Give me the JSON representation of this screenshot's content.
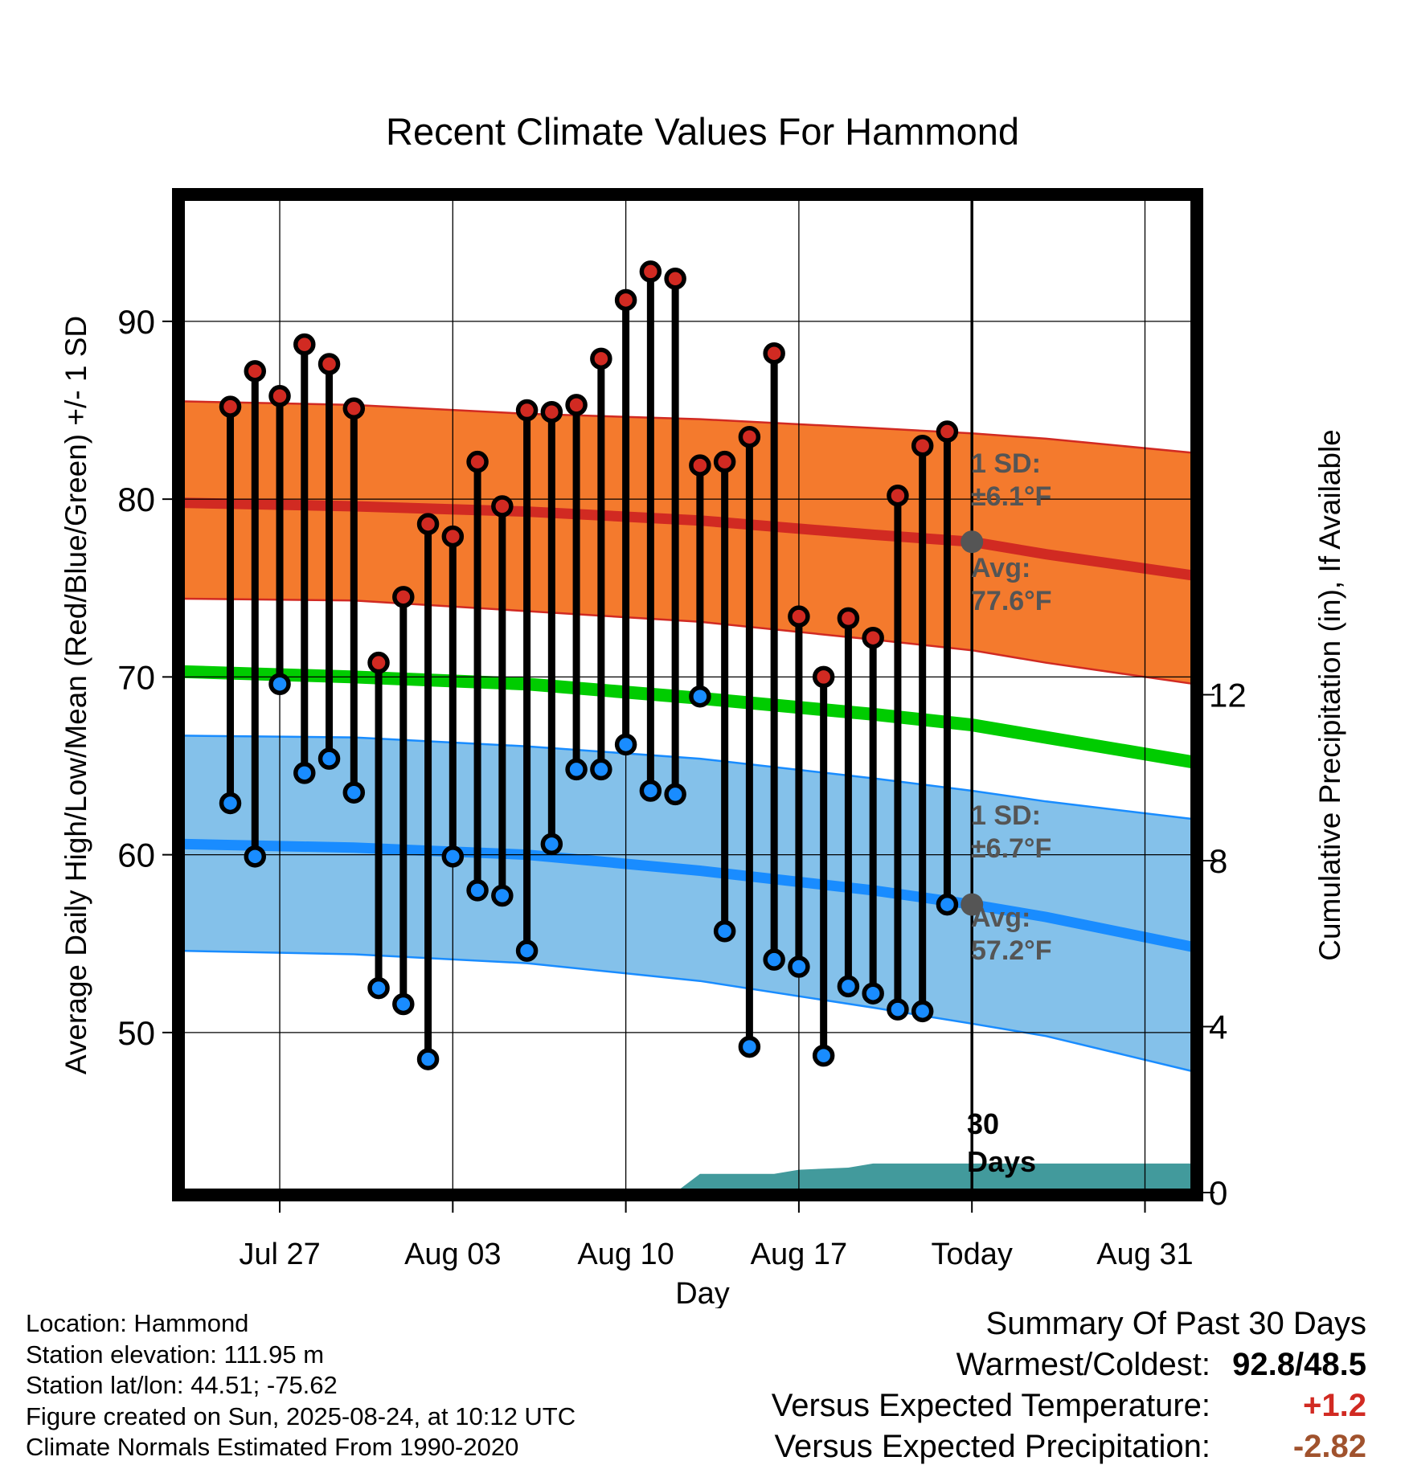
{
  "chart_data": {
    "type": "line",
    "title": "Recent Climate Values For Hammond",
    "xlabel": "Day",
    "ylabel": "Average Daily High/Low/Mean (Red/Blue/Green) +/- 1 SD",
    "y2label": "Cumulative Precipitation (in), If Available",
    "x_ticks": [
      {
        "label": "Jul 27",
        "date": "2025-07-27"
      },
      {
        "label": "Aug 03",
        "date": "2025-08-03"
      },
      {
        "label": "Aug 10",
        "date": "2025-08-10"
      },
      {
        "label": "Aug 17",
        "date": "2025-08-17"
      },
      {
        "label": "Today",
        "date": "2025-08-24"
      },
      {
        "label": "Aug 31",
        "date": "2025-08-31"
      }
    ],
    "xlim": [
      "2025-07-23",
      "2025-09-02"
    ],
    "ylim": [
      41,
      97
    ],
    "y_ticks": [
      50,
      60,
      70,
      80,
      90
    ],
    "y2lim": [
      0,
      24
    ],
    "y2_ticks": [
      0,
      4,
      8,
      12
    ],
    "today": "2025-08-24",
    "today_label": "30 Days",
    "grid": true,
    "normals": {
      "x": [
        "2025-07-23",
        "2025-07-30",
        "2025-08-06",
        "2025-08-13",
        "2025-08-20",
        "2025-08-24",
        "2025-08-27",
        "2025-09-02"
      ],
      "high_avg": [
        79.8,
        79.6,
        79.3,
        78.8,
        78.0,
        77.6,
        76.9,
        75.7
      ],
      "high_sd_upper": [
        85.5,
        85.3,
        84.8,
        84.5,
        84.0,
        83.7,
        83.4,
        82.6
      ],
      "high_sd_lower": [
        74.4,
        74.3,
        73.7,
        73.1,
        72.1,
        71.5,
        70.8,
        69.6
      ],
      "mean_avg": [
        70.3,
        70.0,
        69.6,
        68.8,
        67.9,
        67.3,
        66.6,
        65.2
      ],
      "low_avg": [
        60.6,
        60.4,
        60.0,
        59.1,
        58.0,
        57.2,
        56.5,
        54.8
      ],
      "low_sd_upper": [
        66.7,
        66.6,
        66.1,
        65.4,
        64.3,
        63.6,
        63.0,
        62.0
      ],
      "low_sd_lower": [
        54.6,
        54.4,
        53.9,
        52.9,
        51.4,
        50.5,
        49.8,
        47.8
      ]
    },
    "series": [
      {
        "name": "Daily High",
        "x": [
          "2025-07-25",
          "2025-07-26",
          "2025-07-27",
          "2025-07-28",
          "2025-07-29",
          "2025-07-30",
          "2025-07-31",
          "2025-08-01",
          "2025-08-02",
          "2025-08-03",
          "2025-08-04",
          "2025-08-05",
          "2025-08-06",
          "2025-08-07",
          "2025-08-08",
          "2025-08-09",
          "2025-08-10",
          "2025-08-11",
          "2025-08-12",
          "2025-08-13",
          "2025-08-14",
          "2025-08-15",
          "2025-08-16",
          "2025-08-17",
          "2025-08-18",
          "2025-08-19",
          "2025-08-20",
          "2025-08-21",
          "2025-08-22",
          "2025-08-23"
        ],
        "values": [
          85.2,
          87.2,
          85.8,
          88.7,
          87.6,
          85.1,
          70.8,
          74.5,
          78.6,
          77.9,
          82.1,
          79.6,
          85.0,
          84.9,
          85.3,
          87.9,
          91.2,
          92.8,
          92.4,
          81.9,
          82.1,
          83.5,
          88.2,
          73.4,
          70.0,
          73.3,
          72.2,
          80.2,
          83.0,
          83.8
        ]
      },
      {
        "name": "Daily Low",
        "x": [
          "2025-07-25",
          "2025-07-26",
          "2025-07-27",
          "2025-07-28",
          "2025-07-29",
          "2025-07-30",
          "2025-07-31",
          "2025-08-01",
          "2025-08-02",
          "2025-08-03",
          "2025-08-04",
          "2025-08-05",
          "2025-08-06",
          "2025-08-07",
          "2025-08-08",
          "2025-08-09",
          "2025-08-10",
          "2025-08-11",
          "2025-08-12",
          "2025-08-13",
          "2025-08-14",
          "2025-08-15",
          "2025-08-16",
          "2025-08-17",
          "2025-08-18",
          "2025-08-19",
          "2025-08-20",
          "2025-08-21",
          "2025-08-22",
          "2025-08-23"
        ],
        "values": [
          62.9,
          59.9,
          69.6,
          64.6,
          65.4,
          63.5,
          52.5,
          51.6,
          48.5,
          59.9,
          58.0,
          57.7,
          54.6,
          60.6,
          64.8,
          64.8,
          66.2,
          63.6,
          63.4,
          68.9,
          55.7,
          49.2,
          54.1,
          53.7,
          48.7,
          52.6,
          52.2,
          51.3,
          51.2,
          57.2
        ]
      },
      {
        "name": "Cumulative Precipitation",
        "x": [
          "2025-08-12",
          "2025-08-13",
          "2025-08-16",
          "2025-08-17",
          "2025-08-19",
          "2025-08-20",
          "2025-09-02"
        ],
        "values": [
          0,
          0.45,
          0.45,
          0.55,
          0.6,
          0.7,
          0.7
        ]
      }
    ],
    "annotations": [
      {
        "line1": "1 SD:",
        "line2": "±6.1",
        "unit": "°F",
        "series": "high"
      },
      {
        "line1": "Avg:",
        "line2": "77.6",
        "unit": "°F",
        "series": "high"
      },
      {
        "line1": "1 SD:",
        "line2": "±6.7",
        "unit": "°F",
        "series": "low"
      },
      {
        "line1": "Avg:",
        "line2": "57.2",
        "unit": "°F",
        "series": "low"
      }
    ],
    "colors": {
      "high_band": "#f47a2d",
      "high_line": "#d12a22",
      "high_band_edge": "#d12a22",
      "low_band": "#84c1ea",
      "low_line": "#198cff",
      "low_band_edge": "#198cff",
      "mean_line": "#00cc00",
      "precip": "#429a9c",
      "high_dot": "#d12a22",
      "low_dot": "#198cff",
      "today_dot": "#555555",
      "annotation": "#555555"
    }
  },
  "footer": {
    "location": "Location: Hammond",
    "elevation": "Station elevation: 111.95 m",
    "latlon": "Station lat/lon: 44.51; -75.62",
    "created": "Figure created on Sun, 2025-08-24, at 10:12 UTC",
    "normals": "Climate Normals Estimated From 1990-2020"
  },
  "summary": {
    "title": "Summary Of Past 30 Days",
    "warmest_label": "Warmest/Coldest:",
    "warmest_value": "92.8/48.5",
    "temp_label": "Versus Expected Temperature:",
    "temp_value": "+1.2",
    "temp_color": "#d12a22",
    "precip_label": "Versus Expected Precipitation:",
    "precip_value": "-2.82",
    "precip_color": "#a0522d"
  }
}
